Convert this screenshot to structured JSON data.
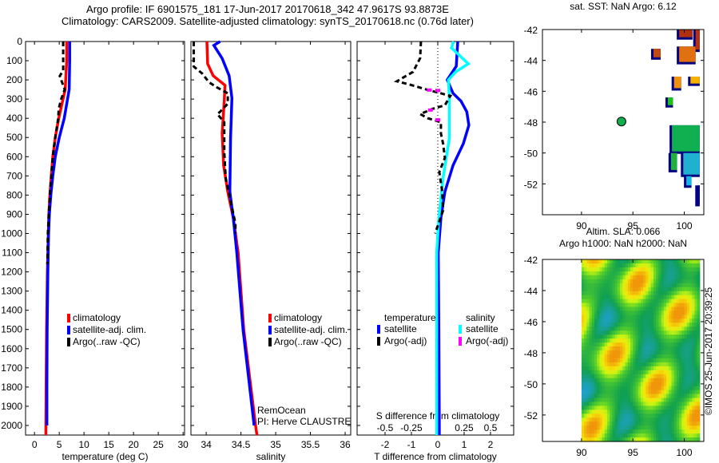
{
  "header": {
    "line1": "Argo profile: IF 6901575_181 17-Jun-2017 20170618_342 47.9617S 93.8873E",
    "line2": "Climatology: CARS2009. Satellite-adjusted climatology: synTS_20170618.nc (0.76d later)"
  },
  "credit": {
    "imos": "©IMOS 25-Jun-2017 20:39:25"
  },
  "annotation": {
    "project": "RemOcean",
    "pi": "PI: Herve CLAUSTRE"
  },
  "colors": {
    "climatology": "#ff0000",
    "satellite": "#0000ff",
    "argo": "#000000",
    "sal_satellite": "#00ffff",
    "sal_argo": "#ff00ff"
  },
  "chart_data": [
    {
      "type": "line",
      "id": "temperature",
      "xlabel": "temperature (deg C)",
      "ylabel": "",
      "xlim": [
        -1.8,
        30.3
      ],
      "ylim": [
        2050,
        0
      ],
      "xticks": [
        0,
        5,
        10,
        15,
        20,
        25,
        30
      ],
      "yticks": [
        0,
        100,
        200,
        300,
        400,
        500,
        600,
        700,
        800,
        900,
        1000,
        1100,
        1200,
        1300,
        1400,
        1500,
        1600,
        1700,
        1800,
        1900,
        2000
      ],
      "legend": [
        "climatology",
        "satellite-adj. clim.",
        "Argo(..raw -QC)"
      ],
      "series": [
        {
          "name": "climatology",
          "color": "#ff0000",
          "depth": [
            0,
            100,
            250,
            400,
            500,
            600,
            700,
            800,
            900,
            1000,
            1200,
            1500,
            1800,
            2000,
            2050
          ],
          "values": [
            6.5,
            6.5,
            6.2,
            4.9,
            4.2,
            3.7,
            3.4,
            3.1,
            2.9,
            2.8,
            2.6,
            2.45,
            2.35,
            2.3,
            2.3
          ]
        },
        {
          "name": "satellite-adj. clim.",
          "color": "#0000ff",
          "depth": [
            0,
            100,
            250,
            400,
            500,
            600,
            700,
            800,
            900,
            1000,
            1200,
            1500,
            1800,
            2000
          ],
          "values": [
            7.1,
            7.1,
            7.0,
            6.0,
            5.0,
            4.2,
            3.7,
            3.3,
            3.0,
            2.85,
            2.7,
            2.55,
            2.5,
            2.5
          ]
        },
        {
          "name": "Argo(..raw -QC)",
          "color": "#000000",
          "dashed": true,
          "depth": [
            0,
            150,
            180,
            250,
            300,
            350,
            400,
            500,
            600,
            700,
            800,
            900,
            1000,
            1160
          ],
          "values": [
            5.8,
            5.8,
            5.1,
            6.1,
            5.4,
            4.9,
            4.8,
            4.2,
            3.7,
            3.4,
            3.1,
            2.9,
            2.7,
            2.6
          ]
        }
      ]
    },
    {
      "type": "line",
      "id": "salinity",
      "xlabel": "salinity",
      "xlim": [
        33.78,
        36.08
      ],
      "ylim": [
        2050,
        0
      ],
      "xticks": [
        34,
        34.5,
        35,
        35.5,
        36
      ],
      "xtick_labels": [
        "34",
        "34.5",
        "35",
        "35.5",
        "36"
      ],
      "legend": [
        "climatology",
        "satellite-adj. clim.",
        "Argo(..raw -QC)"
      ],
      "series": [
        {
          "name": "climatology",
          "color": "#ff0000",
          "depth": [
            0,
            116,
            178,
            228,
            310,
            478,
            645,
            782,
            919,
            1100,
            1500,
            2000,
            2050
          ],
          "values": [
            34.01,
            34.02,
            34.1,
            34.27,
            34.26,
            34.23,
            34.25,
            34.31,
            34.39,
            34.46,
            34.54,
            34.71,
            34.73
          ]
        },
        {
          "name": "satellite-adj. clim.",
          "color": "#0000ff",
          "depth": [
            0,
            20,
            88,
            178,
            295,
            503,
            782,
            919,
            1100,
            1500,
            2000
          ],
          "values": [
            34.2,
            34.11,
            34.23,
            34.33,
            34.37,
            34.35,
            34.34,
            34.39,
            34.44,
            34.53,
            34.69
          ]
        },
        {
          "name": "Argo(..raw -QC)",
          "color": "#000000",
          "dashed": true,
          "depth": [
            0,
            130,
            166,
            212,
            240,
            270,
            324,
            366,
            378,
            420,
            574,
            711,
            948,
            1000
          ],
          "values": [
            33.82,
            33.82,
            33.94,
            34.04,
            34.16,
            34.31,
            34.31,
            34.2,
            34.16,
            34.26,
            34.26,
            34.28,
            34.42,
            34.42
          ]
        }
      ]
    },
    {
      "type": "line",
      "id": "difference",
      "xlabel": "T difference from climatology",
      "x2label": "S difference from climatology",
      "xlim": [
        -3.06,
        2.88
      ],
      "ylim": [
        2050,
        0
      ],
      "xticks": [
        -2,
        -1,
        0,
        1,
        2
      ],
      "x2ticks": [
        -0.5,
        -0.25,
        0,
        0.25,
        0.5
      ],
      "x2tick_labels": [
        "-0.5",
        "-0.25",
        "0",
        "0.25",
        "0.5"
      ],
      "legend_headers": [
        "temperature",
        "salinity"
      ],
      "legend": [
        "satellite",
        "Argo(-adj)",
        "satellite",
        "Argo(-adj)"
      ],
      "series": [
        {
          "name": "T satellite",
          "axis": "T",
          "color": "#0000ff",
          "depth": [
            0,
            129,
            200,
            270,
            310,
            366,
            436,
            532,
            645,
            782,
            919,
            1100,
            1500,
            2000,
            2050
          ],
          "values": [
            0.76,
            0.7,
            0.36,
            0.58,
            0.88,
            1.1,
            1.18,
            0.97,
            0.58,
            0.27,
            0.12,
            0.02,
            0.04,
            0.06,
            0.06
          ]
        },
        {
          "name": "S satellite",
          "axis": "S",
          "color": "#00ffff",
          "depth": [
            0,
            33,
            116,
            158,
            200,
            295,
            503,
            711,
            919,
            1100,
            1500,
            2000,
            2050
          ],
          "values": [
            0.15,
            0.13,
            0.29,
            0.17,
            0.1,
            0.11,
            0.11,
            0.05,
            0.01,
            -0.01,
            -0.01,
            -0.01,
            -0.01
          ]
        },
        {
          "name": "T Argo(-adj)",
          "axis": "T",
          "color": "#000000",
          "dashed": true,
          "depth": [
            0,
            87,
            158,
            207,
            225,
            250,
            283,
            332,
            350,
            378,
            400,
            420,
            478,
            532,
            606,
            680,
            782,
            880,
            1000
          ],
          "values": [
            -0.64,
            -0.67,
            -0.94,
            -1.55,
            -1.05,
            -0.43,
            0.48,
            0.27,
            -0.18,
            -0.67,
            -0.37,
            0.12,
            0.12,
            0.2,
            0.27,
            0.06,
            0.17,
            0.2,
            -0.1
          ]
        },
        {
          "name": "S Argo(-adj)",
          "axis": "S",
          "color": "#ff00ff",
          "points": true,
          "depth": [
            253,
            255,
            357,
            408
          ],
          "values": [
            -0.08,
            0.0,
            -0.07,
            0.0
          ]
        }
      ]
    },
    {
      "type": "heatmap",
      "id": "sst-map",
      "title": "sat. SST: NaN Argo: 6.12",
      "xlim": [
        86.2,
        101.9
      ],
      "ylim": [
        -54.0,
        -42
      ],
      "xticks": [
        90,
        95,
        100
      ],
      "yticks": [
        -42,
        -44,
        -46,
        -48,
        -50,
        -52
      ],
      "float_position": {
        "lon": 93.8873,
        "lat": -47.9617,
        "color": "#10b050"
      },
      "patches": [
        {
          "lon": [
            99.5,
            100.8
          ],
          "lat": [
            -42.5,
            -42.0
          ],
          "color": "#b03010"
        },
        {
          "lon": [
            101.1,
            101.5
          ],
          "lat": [
            -43.3,
            -42.0
          ],
          "color": "#b83010"
        },
        {
          "lon": [
            97.0,
            97.7
          ],
          "lat": [
            -43.8,
            -43.25
          ],
          "color": "#c04a10"
        },
        {
          "lon": [
            99.5,
            101.1
          ],
          "lat": [
            -44.1,
            -43.1
          ],
          "color": "#e07010"
        },
        {
          "lon": [
            99.0,
            99.7
          ],
          "lat": [
            -45.8,
            -45.05
          ],
          "color": "#f09010"
        },
        {
          "lon": [
            100.6,
            101.5
          ],
          "lat": [
            -45.5,
            -45.05
          ],
          "color": "#f8b000"
        },
        {
          "lon": [
            98.4,
            98.9
          ],
          "lat": [
            -46.9,
            -46.4
          ],
          "color": "#20c020"
        },
        {
          "lon": [
            98.8,
            101.5
          ],
          "lat": [
            -49.9,
            -48.2
          ],
          "color": "#10b050"
        },
        {
          "lon": [
            98.7,
            99.3
          ],
          "lat": [
            -51.1,
            -50.0
          ],
          "color": "#20b040"
        },
        {
          "lon": [
            99.9,
            101.5
          ],
          "lat": [
            -51.4,
            -50.0
          ],
          "color": "#20b0d0"
        },
        {
          "lon": [
            100.2,
            100.7
          ],
          "lat": [
            -52.1,
            -51.5
          ],
          "color": "#10b8e8"
        },
        {
          "lon": [
            101.3,
            101.5
          ],
          "lat": [
            -53.3,
            -52.1
          ],
          "color": "#000080"
        }
      ]
    },
    {
      "type": "heatmap",
      "id": "sla-map",
      "title": "Altim. SLA: 0.066",
      "subtitle": "Argo h1000: NaN h2000: NaN",
      "xlim": [
        86.2,
        101.9
      ],
      "ylim": [
        -53.7,
        -42
      ],
      "xticks": [
        90,
        95,
        100
      ],
      "yticks": [
        -42,
        -44,
        -46,
        -48,
        -50,
        -52
      ],
      "field_extent": {
        "lon": [
          90,
          101.5
        ],
        "lat": [
          -53.7,
          -42
        ]
      }
    }
  ]
}
